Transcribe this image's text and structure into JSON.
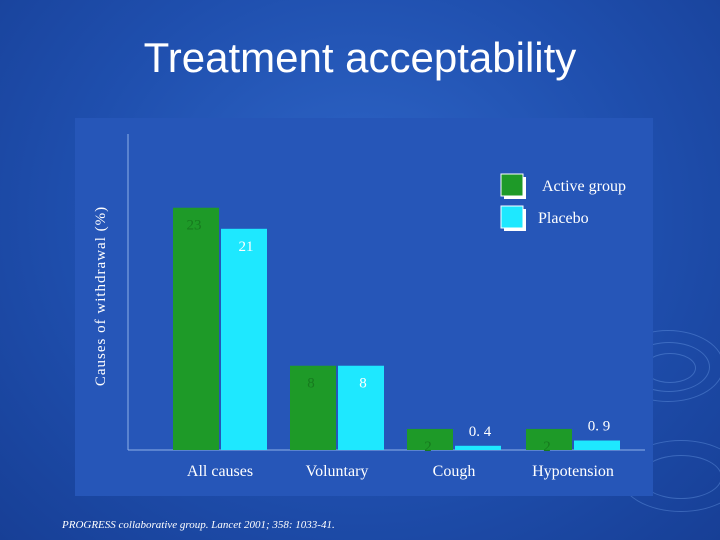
{
  "slide": {
    "title": "Treatment acceptability",
    "source": "PROGRESS collaborative group. Lancet 2001; 358: 1033-41."
  },
  "colors": {
    "background": "#1f4fae",
    "active": "#1e9a28",
    "placebo": "#1ee8ff",
    "text": "#ffffff"
  },
  "chart_data": {
    "type": "bar",
    "ylabel": "Causes of withdrawal (%)",
    "xlabel": "",
    "categories": [
      "All causes",
      "Voluntary",
      "Cough",
      "Hypotension"
    ],
    "series": [
      {
        "name": "Active group",
        "values": [
          23,
          8,
          2,
          2
        ],
        "labels": [
          "23",
          "8",
          "2",
          "2"
        ]
      },
      {
        "name": "Placebo",
        "values": [
          21,
          8,
          0.4,
          0.9
        ],
        "labels": [
          "21",
          "8",
          "0. 4",
          "0. 9"
        ]
      }
    ],
    "ylim": [
      0,
      30
    ],
    "legend": "top-right",
    "grid": false
  }
}
